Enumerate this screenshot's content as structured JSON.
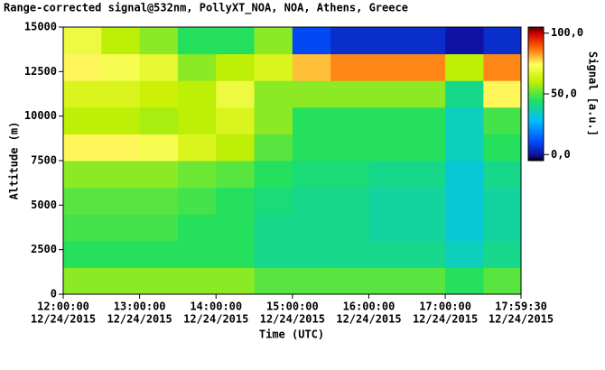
{
  "chart_data": {
    "type": "heatmap",
    "title": "Range-corrected signal@532nm, PollyXT_NOA, NOA, Athens, Greece",
    "x_label": "Time (UTC)",
    "y_label": "Altitude (m)",
    "colorbar_label": "Signal [a.u.]",
    "xlim": [
      "2015-12-24T12:00:00",
      "2015-12-24T17:59:30"
    ],
    "xticks": [
      {
        "value": "2015-12-24T12:00:00",
        "label": [
          "12:00:00",
          "12/24/2015"
        ]
      },
      {
        "value": "2015-12-24T13:00:00",
        "label": [
          "13:00:00",
          "12/24/2015"
        ]
      },
      {
        "value": "2015-12-24T14:00:00",
        "label": [
          "14:00:00",
          "12/24/2015"
        ]
      },
      {
        "value": "2015-12-24T15:00:00",
        "label": [
          "15:00:00",
          "12/24/2015"
        ]
      },
      {
        "value": "2015-12-24T16:00:00",
        "label": [
          "16:00:00",
          "12/24/2015"
        ]
      },
      {
        "value": "2015-12-24T17:00:00",
        "label": [
          "17:00:00",
          "12/24/2015"
        ]
      },
      {
        "value": "2015-12-24T17:59:30",
        "label": [
          "17:59:30",
          "12/24/2015"
        ]
      }
    ],
    "ylim": [
      0,
      15000
    ],
    "yticks": [
      0,
      2500,
      5000,
      7500,
      10000,
      12500,
      15000
    ],
    "zlim": [
      -5,
      105
    ],
    "zticks": [
      {
        "value": 0,
        "label": "0,0"
      },
      {
        "value": 50,
        "label": "50,0"
      },
      {
        "value": 100,
        "label": "100,0"
      }
    ],
    "xbins": [
      "2015-12-24T12:00:00",
      "2015-12-24T12:30:00",
      "2015-12-24T13:00:00",
      "2015-12-24T13:30:00",
      "2015-12-24T14:00:00",
      "2015-12-24T14:30:00",
      "2015-12-24T15:00:00",
      "2015-12-24T15:30:00",
      "2015-12-24T16:00:00",
      "2015-12-24T16:30:00",
      "2015-12-24T17:00:00",
      "2015-12-24T17:30:00",
      "2015-12-24T17:59:30"
    ],
    "ybins": [
      0,
      1500,
      3000,
      4500,
      6000,
      7500,
      9000,
      10500,
      12000,
      13500,
      15000
    ],
    "values": [
      [
        55,
        55,
        55,
        55,
        55,
        50,
        50,
        50,
        50,
        50,
        45,
        50
      ],
      [
        45,
        45,
        45,
        45,
        45,
        40,
        40,
        40,
        40,
        40,
        35,
        40
      ],
      [
        48,
        48,
        48,
        45,
        45,
        40,
        40,
        40,
        38,
        38,
        32,
        38
      ],
      [
        50,
        50,
        50,
        48,
        45,
        42,
        40,
        40,
        38,
        38,
        32,
        38
      ],
      [
        55,
        55,
        55,
        52,
        50,
        45,
        42,
        42,
        40,
        40,
        32,
        40
      ],
      [
        75,
        75,
        72,
        65,
        60,
        50,
        45,
        45,
        45,
        45,
        35,
        45
      ],
      [
        60,
        60,
        58,
        60,
        65,
        55,
        45,
        45,
        45,
        45,
        35,
        48
      ],
      [
        65,
        65,
        62,
        60,
        70,
        55,
        55,
        55,
        55,
        55,
        40,
        75
      ],
      [
        75,
        72,
        68,
        55,
        60,
        65,
        80,
        85,
        85,
        85,
        60,
        85
      ],
      [
        70,
        60,
        55,
        45,
        45,
        55,
        10,
        5,
        5,
        5,
        0,
        5
      ]
    ]
  }
}
